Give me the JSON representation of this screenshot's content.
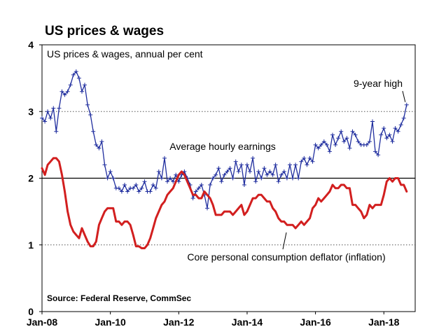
{
  "chart_data": {
    "type": "line",
    "title": "US prices & wages",
    "subtitle": "US prices & wages, annual per cent",
    "source": "Source: Federal Reserve, CommSec",
    "ylim": [
      0,
      4
    ],
    "y_ticks": [
      "0",
      "1",
      "2",
      "3",
      "4"
    ],
    "x_range": [
      "2008-01",
      "2018-12"
    ],
    "x_ticks": [
      {
        "label": "Jan-08",
        "date": "2008-01"
      },
      {
        "label": "Jan-10",
        "date": "2010-01"
      },
      {
        "label": "Jan-12",
        "date": "2012-01"
      },
      {
        "label": "Jan-14",
        "date": "2014-01"
      },
      {
        "label": "Jan-16",
        "date": "2016-01"
      },
      {
        "label": "Jan-18",
        "date": "2018-01"
      }
    ],
    "grid": "dotted horizontal at 1 and 3, solid at 2",
    "annotations": [
      {
        "text": "Average hourly earnings",
        "series": "Average hourly earnings"
      },
      {
        "text": "Core personal consumption deflator (inflation)",
        "series": "Core personal consumption deflator (inflation)"
      },
      {
        "text": "9-year high",
        "date": "2018-09",
        "value": 3.1
      }
    ],
    "series": [
      {
        "name": "Average hourly earnings",
        "color": "#1f2d9e",
        "marker": "plus",
        "x": [
          "2008-01",
          "2008-02",
          "2008-03",
          "2008-04",
          "2008-05",
          "2008-06",
          "2008-07",
          "2008-08",
          "2008-09",
          "2008-10",
          "2008-11",
          "2008-12",
          "2009-01",
          "2009-02",
          "2009-03",
          "2009-04",
          "2009-05",
          "2009-06",
          "2009-07",
          "2009-08",
          "2009-09",
          "2009-10",
          "2009-11",
          "2009-12",
          "2010-01",
          "2010-02",
          "2010-03",
          "2010-04",
          "2010-05",
          "2010-06",
          "2010-07",
          "2010-08",
          "2010-09",
          "2010-10",
          "2010-11",
          "2010-12",
          "2011-01",
          "2011-02",
          "2011-03",
          "2011-04",
          "2011-05",
          "2011-06",
          "2011-07",
          "2011-08",
          "2011-09",
          "2011-10",
          "2011-11",
          "2011-12",
          "2012-01",
          "2012-02",
          "2012-03",
          "2012-04",
          "2012-05",
          "2012-06",
          "2012-07",
          "2012-08",
          "2012-09",
          "2012-10",
          "2012-11",
          "2012-12",
          "2013-01",
          "2013-02",
          "2013-03",
          "2013-04",
          "2013-05",
          "2013-06",
          "2013-07",
          "2013-08",
          "2013-09",
          "2013-10",
          "2013-11",
          "2013-12",
          "2014-01",
          "2014-02",
          "2014-03",
          "2014-04",
          "2014-05",
          "2014-06",
          "2014-07",
          "2014-08",
          "2014-09",
          "2014-10",
          "2014-11",
          "2014-12",
          "2015-01",
          "2015-02",
          "2015-03",
          "2015-04",
          "2015-05",
          "2015-06",
          "2015-07",
          "2015-08",
          "2015-09",
          "2015-10",
          "2015-11",
          "2015-12",
          "2016-01",
          "2016-02",
          "2016-03",
          "2016-04",
          "2016-05",
          "2016-06",
          "2016-07",
          "2016-08",
          "2016-09",
          "2016-10",
          "2016-11",
          "2016-12",
          "2017-01",
          "2017-02",
          "2017-03",
          "2017-04",
          "2017-05",
          "2017-06",
          "2017-07",
          "2017-08",
          "2017-09",
          "2017-10",
          "2017-11",
          "2017-12",
          "2018-01",
          "2018-02",
          "2018-03",
          "2018-04",
          "2018-05",
          "2018-06",
          "2018-07",
          "2018-08",
          "2018-09"
        ],
        "values": [
          2.9,
          2.85,
          3.0,
          2.9,
          3.05,
          2.7,
          3.05,
          3.3,
          3.25,
          3.3,
          3.4,
          3.55,
          3.6,
          3.5,
          3.3,
          3.4,
          3.1,
          2.95,
          2.7,
          2.5,
          2.45,
          2.55,
          2.2,
          2.0,
          2.1,
          2.0,
          1.85,
          1.85,
          1.8,
          1.9,
          1.8,
          1.85,
          1.85,
          1.9,
          1.8,
          1.85,
          1.95,
          1.8,
          1.8,
          1.9,
          1.85,
          2.1,
          2.0,
          2.3,
          1.95,
          2.0,
          1.95,
          2.05,
          1.95,
          2.05,
          2.1,
          2.0,
          1.9,
          1.7,
          1.8,
          1.85,
          1.9,
          1.75,
          1.55,
          1.9,
          2.0,
          2.05,
          2.15,
          1.95,
          2.05,
          2.1,
          2.15,
          2.0,
          2.25,
          2.1,
          2.2,
          1.9,
          2.2,
          2.1,
          2.3,
          1.95,
          2.1,
          2.0,
          2.15,
          2.05,
          2.1,
          2.05,
          2.2,
          1.95,
          2.05,
          2.1,
          2.0,
          2.2,
          2.0,
          2.2,
          2.0,
          2.25,
          2.3,
          2.2,
          2.3,
          2.25,
          2.5,
          2.45,
          2.5,
          2.55,
          2.5,
          2.4,
          2.65,
          2.5,
          2.6,
          2.7,
          2.55,
          2.6,
          2.45,
          2.7,
          2.65,
          2.55,
          2.5,
          2.5,
          2.5,
          2.55,
          2.85,
          2.4,
          2.35,
          2.65,
          2.75,
          2.6,
          2.65,
          2.55,
          2.75,
          2.7,
          2.8,
          2.9,
          3.1
        ]
      },
      {
        "name": "Core personal consumption deflator (inflation)",
        "color": "#d21f1f",
        "marker": "none",
        "x": [
          "2008-01",
          "2008-02",
          "2008-03",
          "2008-04",
          "2008-05",
          "2008-06",
          "2008-07",
          "2008-08",
          "2008-09",
          "2008-10",
          "2008-11",
          "2008-12",
          "2009-01",
          "2009-02",
          "2009-03",
          "2009-04",
          "2009-05",
          "2009-06",
          "2009-07",
          "2009-08",
          "2009-09",
          "2009-10",
          "2009-11",
          "2009-12",
          "2010-01",
          "2010-02",
          "2010-03",
          "2010-04",
          "2010-05",
          "2010-06",
          "2010-07",
          "2010-08",
          "2010-09",
          "2010-10",
          "2010-11",
          "2010-12",
          "2011-01",
          "2011-02",
          "2011-03",
          "2011-04",
          "2011-05",
          "2011-06",
          "2011-07",
          "2011-08",
          "2011-09",
          "2011-10",
          "2011-11",
          "2011-12",
          "2012-01",
          "2012-02",
          "2012-03",
          "2012-04",
          "2012-05",
          "2012-06",
          "2012-07",
          "2012-08",
          "2012-09",
          "2012-10",
          "2012-11",
          "2012-12",
          "2013-01",
          "2013-02",
          "2013-03",
          "2013-04",
          "2013-05",
          "2013-06",
          "2013-07",
          "2013-08",
          "2013-09",
          "2013-10",
          "2013-11",
          "2013-12",
          "2014-01",
          "2014-02",
          "2014-03",
          "2014-04",
          "2014-05",
          "2014-06",
          "2014-07",
          "2014-08",
          "2014-09",
          "2014-10",
          "2014-11",
          "2014-12",
          "2015-01",
          "2015-02",
          "2015-03",
          "2015-04",
          "2015-05",
          "2015-06",
          "2015-07",
          "2015-08",
          "2015-09",
          "2015-10",
          "2015-11",
          "2015-12",
          "2016-01",
          "2016-02",
          "2016-03",
          "2016-04",
          "2016-05",
          "2016-06",
          "2016-07",
          "2016-08",
          "2016-09",
          "2016-10",
          "2016-11",
          "2016-12",
          "2017-01",
          "2017-02",
          "2017-03",
          "2017-04",
          "2017-05",
          "2017-06",
          "2017-07",
          "2017-08",
          "2017-09",
          "2017-10",
          "2017-11",
          "2017-12",
          "2018-01",
          "2018-02",
          "2018-03",
          "2018-04",
          "2018-05",
          "2018-06",
          "2018-07",
          "2018-08",
          "2018-09"
        ],
        "values": [
          2.15,
          2.05,
          2.2,
          2.25,
          2.3,
          2.3,
          2.25,
          2.05,
          1.8,
          1.5,
          1.3,
          1.2,
          1.15,
          1.1,
          1.25,
          1.15,
          1.05,
          0.98,
          0.98,
          1.05,
          1.3,
          1.4,
          1.5,
          1.55,
          1.55,
          1.55,
          1.35,
          1.35,
          1.3,
          1.35,
          1.35,
          1.3,
          1.15,
          0.98,
          0.98,
          0.95,
          0.95,
          1.0,
          1.1,
          1.25,
          1.4,
          1.5,
          1.6,
          1.65,
          1.75,
          1.8,
          1.85,
          1.95,
          2.05,
          2.1,
          2.05,
          1.95,
          1.85,
          1.75,
          1.75,
          1.7,
          1.7,
          1.8,
          1.75,
          1.7,
          1.6,
          1.45,
          1.45,
          1.45,
          1.5,
          1.5,
          1.5,
          1.45,
          1.5,
          1.55,
          1.6,
          1.45,
          1.5,
          1.6,
          1.7,
          1.7,
          1.75,
          1.75,
          1.7,
          1.65,
          1.65,
          1.55,
          1.5,
          1.4,
          1.35,
          1.35,
          1.3,
          1.3,
          1.3,
          1.25,
          1.3,
          1.35,
          1.3,
          1.35,
          1.4,
          1.55,
          1.6,
          1.7,
          1.65,
          1.7,
          1.75,
          1.8,
          1.9,
          1.85,
          1.85,
          1.9,
          1.9,
          1.85,
          1.85,
          1.6,
          1.6,
          1.55,
          1.5,
          1.4,
          1.45,
          1.6,
          1.55,
          1.6,
          1.6,
          1.6,
          1.75,
          1.95,
          2.0,
          1.95,
          2.0,
          2.0,
          1.9,
          1.9,
          1.8
        ]
      }
    ]
  }
}
